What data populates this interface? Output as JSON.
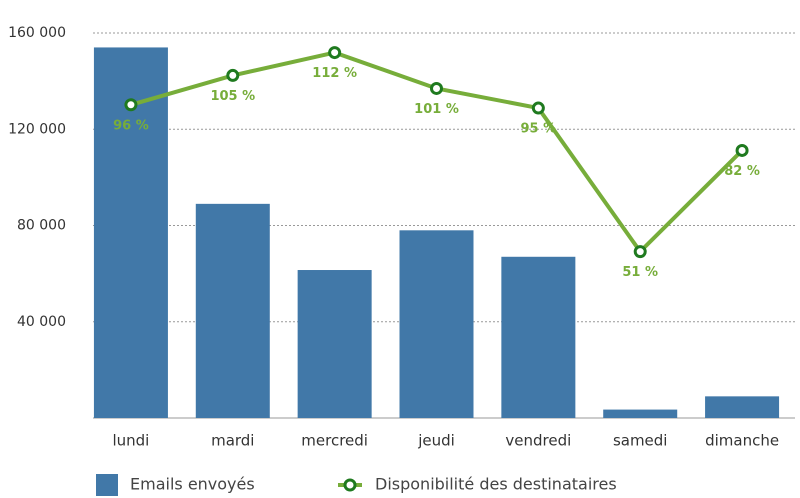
{
  "chart_data": {
    "type": "bar",
    "categories": [
      "lundi",
      "mardi",
      "mercredi",
      "jeudi",
      "vendredi",
      "samedi",
      "dimanche"
    ],
    "series": [
      {
        "name": "Emails envoyés",
        "type": "bar",
        "color": "#4178a8",
        "values": [
          154000,
          89000,
          61500,
          78000,
          67000,
          3500,
          9000
        ]
      },
      {
        "name": "Disponibilité des destinataires",
        "type": "line",
        "axis": "y2",
        "color": "#77ad3a",
        "marker_color": "#1f7a1f",
        "values": [
          96,
          105,
          112,
          101,
          95,
          51,
          82
        ],
        "value_labels": [
          "96 %",
          "105 %",
          "112 %",
          "101 %",
          "95 %",
          "51 %",
          "82 %"
        ]
      }
    ],
    "ylim": [
      0,
      160000
    ],
    "yticks": [
      {
        "value": 40000,
        "label": "40 000"
      },
      {
        "value": 80000,
        "label": "80 000"
      },
      {
        "value": 120000,
        "label": "120 000"
      },
      {
        "value": 160000,
        "label": "160 000"
      }
    ],
    "y2lim": [
      0,
      118
    ],
    "grid": true,
    "legend": "bottom"
  }
}
